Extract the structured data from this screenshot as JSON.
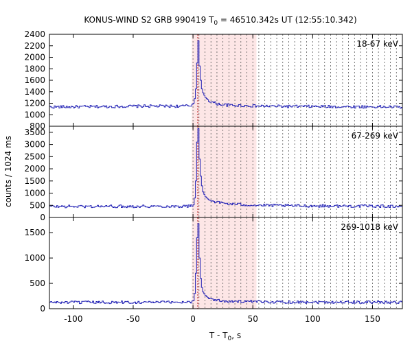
{
  "chart_data": {
    "type": "line",
    "title": {
      "prefix": "KONUS-WIND S2 GRB 990419 T",
      "sub": "0",
      "suffix": " = 46510.342s UT (12:55:10.342)"
    },
    "xlabel": {
      "prefix": "T - T",
      "sub": "0",
      "suffix": ", s"
    },
    "ylabel": "counts / 1024 ms",
    "xlim": [
      -120,
      175
    ],
    "xticks": [
      -100,
      -50,
      0,
      50,
      100,
      150
    ],
    "shaded_interval": [
      -1,
      53
    ],
    "dotted_lines_x": [
      0,
      5,
      10,
      15,
      20,
      25,
      30,
      35,
      40,
      45,
      50,
      55,
      60,
      65,
      70,
      75,
      80,
      85,
      90,
      95,
      100,
      105,
      110,
      115,
      120,
      125,
      130,
      135,
      140,
      145,
      150,
      155,
      160,
      165,
      170
    ],
    "t0_line_x": 4,
    "line_color": "#1f1fb4",
    "shade_color": "#fde6e6",
    "panels": [
      {
        "band": "18-67 keV",
        "ylim": [
          800,
          2400
        ],
        "yticks": [
          800,
          1000,
          1200,
          1400,
          1600,
          1800,
          2000,
          2200,
          2400
        ],
        "series": {
          "x": [
            -120,
            -80,
            -40,
            -10,
            -2,
            0,
            1,
            2,
            3,
            4,
            5,
            6,
            7,
            8,
            10,
            12,
            15,
            20,
            25,
            30,
            40,
            55,
            80,
            120,
            175
          ],
          "y": [
            1135,
            1140,
            1150,
            1148,
            1160,
            1200,
            1280,
            1450,
            1900,
            2290,
            1850,
            1600,
            1450,
            1380,
            1300,
            1260,
            1220,
            1190,
            1175,
            1165,
            1160,
            1150,
            1145,
            1140,
            1135
          ]
        }
      },
      {
        "band": "67-269 keV",
        "ylim": [
          0,
          3750
        ],
        "yticks": [
          0,
          500,
          1000,
          1500,
          2000,
          2500,
          3000,
          3500
        ],
        "series": {
          "x": [
            -120,
            -80,
            -40,
            -10,
            -2,
            0,
            1,
            2,
            3,
            4,
            5,
            6,
            7,
            8,
            10,
            12,
            15,
            20,
            25,
            30,
            40,
            55,
            80,
            120,
            175
          ],
          "y": [
            450,
            455,
            460,
            460,
            470,
            520,
            800,
            1500,
            3100,
            3650,
            2400,
            1700,
            1300,
            1050,
            850,
            760,
            690,
            620,
            590,
            560,
            530,
            500,
            480,
            470,
            460
          ]
        }
      },
      {
        "band": "269-1018 keV",
        "ylim": [
          0,
          1800
        ],
        "yticks": [
          0,
          500,
          1000,
          1500
        ],
        "series": {
          "x": [
            -120,
            -80,
            -40,
            -10,
            -2,
            0,
            1,
            2,
            3,
            4,
            5,
            6,
            7,
            8,
            10,
            12,
            15,
            20,
            25,
            30,
            40,
            55,
            80,
            120,
            175
          ],
          "y": [
            125,
            125,
            128,
            130,
            135,
            160,
            300,
            700,
            1400,
            1680,
            1000,
            600,
            420,
            330,
            260,
            220,
            190,
            165,
            155,
            148,
            140,
            135,
            132,
            130,
            128
          ]
        }
      }
    ]
  }
}
